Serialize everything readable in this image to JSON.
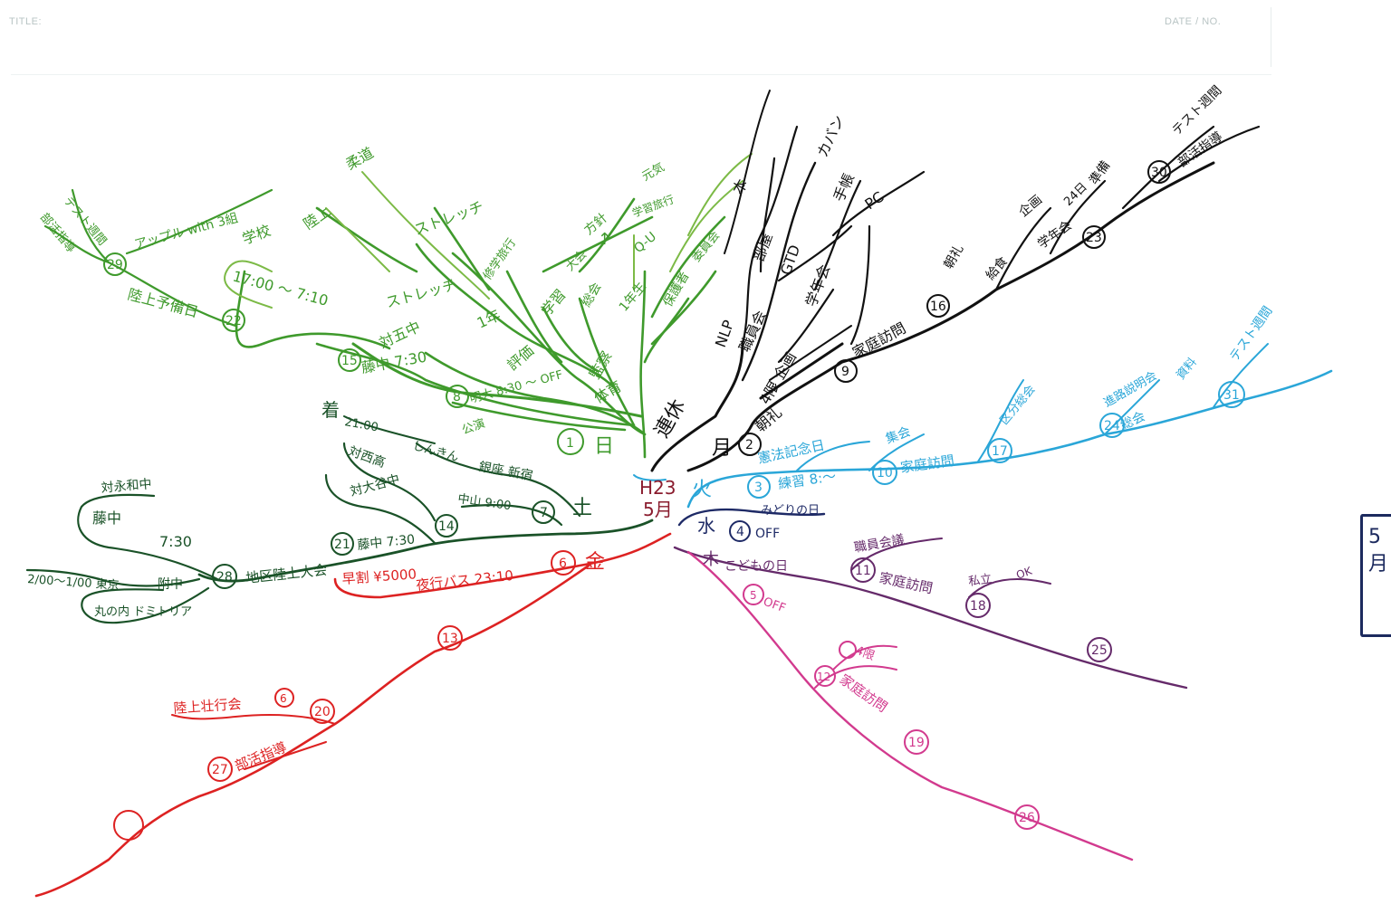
{
  "header": {
    "title_label": "TITLE:",
    "date_label": "DATE / NO."
  },
  "center": {
    "line1": "H23",
    "line2": "5月"
  },
  "colors": {
    "sunday": "#3f9a2c",
    "sunday_light": "#7cba46",
    "saturday": "#1a5228",
    "monday": "#111111",
    "tuesday": "#2aa6d8",
    "wednesday": "#1e2a66",
    "thursday": "#652a6a",
    "friday": "#dd2222",
    "pink": "#d23a8e"
  },
  "days": {
    "sun": "日",
    "mon": "月",
    "tue": "火",
    "wed": "水",
    "thu": "木",
    "fri": "金",
    "sat": "土",
    "holiday": "連休"
  },
  "labels": {
    "sun": {
      "n1": "1",
      "n8": "8",
      "n15": "15",
      "n22": "22",
      "n29": "29",
      "taiiku": "体育",
      "kanshi": "監察",
      "hyoka": "評価",
      "gakushu": "学習",
      "sankan": "参観",
      "ichinen": "1年",
      "rikujo": "陸上",
      "stretch": "ストレッチ",
      "stretch2": "ストレッチ",
      "judo": "柔道",
      "gakko": "学校",
      "time1700": "17:00 〜 7:10",
      "taisen": "対五中",
      "fujichu": "藤中 7:30",
      "meidai": "明大 8:30 〜 OFF",
      "kouen": "公演",
      "rikujo_yobi": "陸上予備日",
      "test_week": "テスト週間",
      "komon": "部活指導",
      "apple": "アップル with 3組",
      "shugaku": "修学旅行",
      "hoshin": "方針",
      "soushi": "総会",
      "qu": "Q-U",
      "hogosha": "保護者",
      "arrow": "↑",
      "iinkai": "委員会",
      "ichinensei": "1年生",
      "genki": "元気",
      "taikai": "大会",
      "ryugaku": "学習旅行",
      "honyaku": "本"
    },
    "mon": {
      "n2": "2",
      "n9": "9",
      "n16": "16",
      "n23": "23",
      "n30": "30",
      "choukai": "朝礼",
      "shokuin": "職員会",
      "kateihoumon": "家庭訪問",
      "nlp": "NLP",
      "gtd": "GTD",
      "ice": "PC",
      "kaban": "カバン",
      "techo": "手帳",
      "hon": "本",
      "heya": "部屋",
      "gakunen": "学年会",
      "kikaku": "企画",
      "yonhan": "4限 企画",
      "choukai2": "朝礼",
      "kyushoku": "給食",
      "kikaku2": "企画",
      "jumbi": "準備",
      "n24": "24日",
      "test_week": "テスト週間",
      "komon": "部活指導"
    },
    "tue": {
      "n3": "3",
      "n10": "10",
      "n17": "17",
      "n24": "24",
      "n31": "31",
      "renshu": "練習 8:〜",
      "kenpou": "憲法記念日",
      "kateihoumon": "家庭訪問",
      "shuukai": "集会",
      "kubun": "区分総会",
      "shiryou": "資料",
      "test_week": "テスト週間",
      "shinro": "進路説明会",
      "tougai": "総会"
    },
    "wed": {
      "n4": "4",
      "off": "OFF",
      "midori": "みどりの日"
    },
    "thu": {
      "n5": "5",
      "n11": "11",
      "n18": "18",
      "n25": "25",
      "kodomo": "こどもの日",
      "off": "OFF",
      "kateihoumon": "家庭訪問",
      "shokuin": "職員会議",
      "shiritsu": "私立",
      "x": "OK"
    },
    "pink": {
      "n12": "12",
      "n19": "19",
      "n26": "26",
      "kateihoumon": "家庭訪問",
      "n4ryo": "4限",
      "off": "OFF"
    },
    "fri": {
      "n6": "6",
      "n13": "13",
      "n20": "20",
      "n27": "27",
      "souwari": "早割 ¥5000",
      "yakou": "夜行バス 23:10",
      "rikujo_hachi": "陸上壮行会",
      "komon": "部活指導"
    },
    "sat": {
      "n7": "7",
      "n14": "14",
      "n21": "21",
      "n28": "28",
      "chaku": "着",
      "time2100": "21:00",
      "kyoto": "しんきん",
      "ginza": "銀座 新宿",
      "taisen1": "対西高",
      "taisen2": "対大谷中",
      "nakano": "中山 9:00",
      "fuji730": "藤中 7:30",
      "chiku": "地区陸上大会",
      "taikakuchu": "対永和中",
      "fujichu": "藤中",
      "time730": "7:30",
      "tokyo": "2/00〜1/00 東京",
      "fuzokuchu": "附中",
      "marunouchi": "丸の内 ドミトリア"
    }
  },
  "edge_tab": {
    "line1": "5",
    "line2": "月"
  }
}
